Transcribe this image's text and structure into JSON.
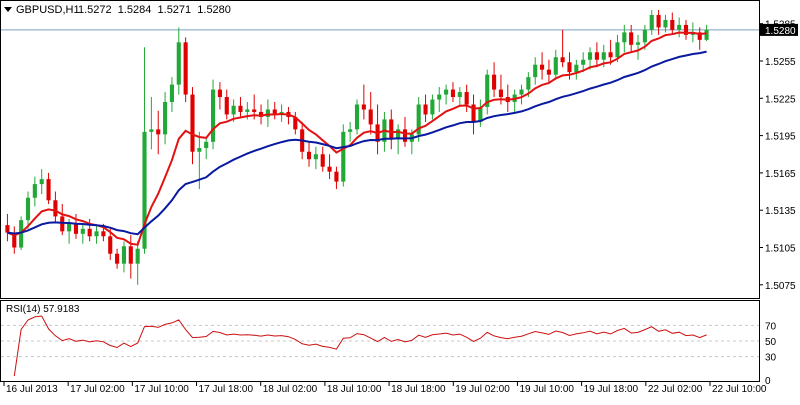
{
  "header": {
    "symbol": "GBPUSD,H1",
    "ohlc": "1.5272  1.5284  1.5271  1.5280",
    "dropdown_icon": "triangle-down-icon"
  },
  "indicator": {
    "label": "RSI(14) 57.9183",
    "levels": [
      "70",
      "50",
      "30",
      "0"
    ]
  },
  "colors": {
    "background": "#ffffff",
    "frame": "#000000",
    "grid": "#c8c8c8",
    "bull": "#22a836",
    "bear": "#e00000",
    "sma_fast": "#e31212",
    "sma_slow": "#0a1aa0",
    "rsi": "#cc1010",
    "price_tag_bg": "#000000",
    "price_tag_fg": "#ffffff",
    "current_price_line": "#7aa0c0"
  },
  "chart_data": {
    "type": "candlestick",
    "symbol": "GBPUSD",
    "timeframe": "H1",
    "current_price": 1.528,
    "current_price_label": "1.5280",
    "price_axis_ticks": [
      "1.5285",
      "1.5255",
      "1.5225",
      "1.5195",
      "1.5165",
      "1.5135",
      "1.5105",
      "1.5075"
    ],
    "price_range": [
      1.5066,
      1.5296
    ],
    "x_ticks": [
      "16 Jul 2013",
      "17 Jul 02:00",
      "17 Jul 10:00",
      "17 Jul 18:00",
      "18 Jul 02:00",
      "18 Jul 10:00",
      "18 Jul 18:00",
      "19 Jul 02:00",
      "19 Jul 10:00",
      "19 Jul 18:00",
      "22 Jul 02:00",
      "22 Jul 10:00"
    ],
    "candles": [
      [
        1.5123,
        1.5132,
        1.511,
        1.5117
      ],
      [
        1.5117,
        1.5122,
        1.51,
        1.5105
      ],
      [
        1.5105,
        1.513,
        1.5103,
        1.5127
      ],
      [
        1.5127,
        1.515,
        1.512,
        1.5145
      ],
      [
        1.5145,
        1.5162,
        1.5138,
        1.5156
      ],
      [
        1.5156,
        1.5168,
        1.5148,
        1.516
      ],
      [
        1.516,
        1.5165,
        1.514,
        1.5143
      ],
      [
        1.5143,
        1.515,
        1.5125,
        1.513
      ],
      [
        1.513,
        1.514,
        1.5115,
        1.5118
      ],
      [
        1.5118,
        1.5128,
        1.5108,
        1.5124
      ],
      [
        1.5124,
        1.5132,
        1.5112,
        1.5116
      ],
      [
        1.5116,
        1.5124,
        1.5108,
        1.512
      ],
      [
        1.512,
        1.5128,
        1.511,
        1.5114
      ],
      [
        1.5114,
        1.5122,
        1.5108,
        1.5118
      ],
      [
        1.5118,
        1.5124,
        1.511,
        1.5114
      ],
      [
        1.5114,
        1.512,
        1.5095,
        1.51
      ],
      [
        1.51,
        1.5104,
        1.5088,
        1.5092
      ],
      [
        1.5092,
        1.511,
        1.5085,
        1.5106
      ],
      [
        1.5106,
        1.5115,
        1.508,
        1.5092
      ],
      [
        1.5092,
        1.511,
        1.5075,
        1.5104
      ],
      [
        1.5104,
        1.5266,
        1.51,
        1.5198
      ],
      [
        1.5198,
        1.5226,
        1.5184,
        1.52
      ],
      [
        1.52,
        1.5215,
        1.518,
        1.5196
      ],
      [
        1.5196,
        1.523,
        1.5188,
        1.5222
      ],
      [
        1.5222,
        1.5242,
        1.5214,
        1.5236
      ],
      [
        1.5236,
        1.5282,
        1.5228,
        1.527
      ],
      [
        1.527,
        1.5274,
        1.5222,
        1.5228
      ],
      [
        1.5228,
        1.5234,
        1.5172,
        1.5182
      ],
      [
        1.5182,
        1.5198,
        1.5152,
        1.5185
      ],
      [
        1.5185,
        1.5194,
        1.5176,
        1.519
      ],
      [
        1.519,
        1.524,
        1.5184,
        1.5232
      ],
      [
        1.5232,
        1.5238,
        1.5216,
        1.5226
      ],
      [
        1.5226,
        1.5232,
        1.5208,
        1.5212
      ],
      [
        1.5212,
        1.5224,
        1.5206,
        1.5219
      ],
      [
        1.5219,
        1.5226,
        1.521,
        1.5214
      ],
      [
        1.5214,
        1.5222,
        1.5208,
        1.5216
      ],
      [
        1.5216,
        1.5228,
        1.5208,
        1.5214
      ],
      [
        1.5214,
        1.522,
        1.5204,
        1.521
      ],
      [
        1.521,
        1.5224,
        1.5202,
        1.5216
      ],
      [
        1.5216,
        1.5222,
        1.5208,
        1.5212
      ],
      [
        1.5212,
        1.522,
        1.5206,
        1.5214
      ],
      [
        1.5214,
        1.5218,
        1.5204,
        1.521
      ],
      [
        1.521,
        1.5214,
        1.5196,
        1.52
      ],
      [
        1.52,
        1.5206,
        1.5176,
        1.5182
      ],
      [
        1.5182,
        1.519,
        1.517,
        1.5176
      ],
      [
        1.5176,
        1.5186,
        1.5168,
        1.518
      ],
      [
        1.518,
        1.5186,
        1.5166,
        1.517
      ],
      [
        1.517,
        1.518,
        1.516,
        1.5166
      ],
      [
        1.5166,
        1.517,
        1.5152,
        1.5158
      ],
      [
        1.5158,
        1.5204,
        1.5154,
        1.5198
      ],
      [
        1.5198,
        1.5206,
        1.519,
        1.52
      ],
      [
        1.52,
        1.5224,
        1.5196,
        1.522
      ],
      [
        1.522,
        1.5236,
        1.5208,
        1.5216
      ],
      [
        1.5216,
        1.523,
        1.5196,
        1.5204
      ],
      [
        1.5204,
        1.522,
        1.518,
        1.519
      ],
      [
        1.519,
        1.5214,
        1.5182,
        1.5208
      ],
      [
        1.5208,
        1.5216,
        1.5184,
        1.5192
      ],
      [
        1.5192,
        1.5204,
        1.518,
        1.52
      ],
      [
        1.52,
        1.521,
        1.5186,
        1.519
      ],
      [
        1.519,
        1.52,
        1.518,
        1.5196
      ],
      [
        1.5196,
        1.5226,
        1.519,
        1.522
      ],
      [
        1.522,
        1.5228,
        1.5206,
        1.5212
      ],
      [
        1.5212,
        1.5228,
        1.5208,
        1.5224
      ],
      [
        1.5224,
        1.5234,
        1.5214,
        1.5228
      ],
      [
        1.5228,
        1.5236,
        1.522,
        1.5232
      ],
      [
        1.5232,
        1.5238,
        1.5222,
        1.5226
      ],
      [
        1.5226,
        1.5234,
        1.5218,
        1.523
      ],
      [
        1.523,
        1.5236,
        1.5214,
        1.522
      ],
      [
        1.522,
        1.5228,
        1.5196,
        1.5206
      ],
      [
        1.5206,
        1.5224,
        1.5202,
        1.5218
      ],
      [
        1.5218,
        1.5248,
        1.5212,
        1.5244
      ],
      [
        1.5244,
        1.5254,
        1.5226,
        1.5232
      ],
      [
        1.5232,
        1.5244,
        1.522,
        1.5226
      ],
      [
        1.5226,
        1.5236,
        1.5214,
        1.5222
      ],
      [
        1.5222,
        1.5232,
        1.5214,
        1.5228
      ],
      [
        1.5228,
        1.5236,
        1.522,
        1.5232
      ],
      [
        1.5232,
        1.5246,
        1.5226,
        1.5242
      ],
      [
        1.5242,
        1.5258,
        1.5236,
        1.5252
      ],
      [
        1.5252,
        1.5262,
        1.524,
        1.5248
      ],
      [
        1.5248,
        1.5256,
        1.5238,
        1.5244
      ],
      [
        1.5244,
        1.5264,
        1.524,
        1.5258
      ],
      [
        1.5258,
        1.528,
        1.525,
        1.5254
      ],
      [
        1.5254,
        1.5262,
        1.524,
        1.5246
      ],
      [
        1.5246,
        1.5256,
        1.524,
        1.5252
      ],
      [
        1.5252,
        1.5262,
        1.5246,
        1.5256
      ],
      [
        1.5256,
        1.5266,
        1.5248,
        1.5262
      ],
      [
        1.5262,
        1.527,
        1.525,
        1.5256
      ],
      [
        1.5256,
        1.5268,
        1.525,
        1.5262
      ],
      [
        1.5262,
        1.5272,
        1.5252,
        1.5258
      ],
      [
        1.5258,
        1.5276,
        1.5254,
        1.527
      ],
      [
        1.527,
        1.5284,
        1.5262,
        1.5278
      ],
      [
        1.5278,
        1.5284,
        1.5262,
        1.5268
      ],
      [
        1.5268,
        1.5276,
        1.5256,
        1.527
      ],
      [
        1.527,
        1.5284,
        1.5264,
        1.528
      ],
      [
        1.528,
        1.5296,
        1.5276,
        1.5292
      ],
      [
        1.5292,
        1.5296,
        1.5276,
        1.5282
      ],
      [
        1.5282,
        1.5292,
        1.5278,
        1.5288
      ],
      [
        1.5288,
        1.5294,
        1.5276,
        1.528
      ],
      [
        1.528,
        1.529,
        1.5274,
        1.5284
      ],
      [
        1.5284,
        1.5288,
        1.5272,
        1.5276
      ],
      [
        1.5276,
        1.5286,
        1.527,
        1.5278
      ],
      [
        1.5278,
        1.5282,
        1.5264,
        1.5272
      ],
      [
        1.5272,
        1.5284,
        1.5271,
        1.528
      ]
    ],
    "indicators": [
      "fast moving average (red)",
      "slow moving average (blue)"
    ],
    "rsi": {
      "period": 14,
      "value": 57.9183,
      "levels": [
        70,
        50,
        30
      ],
      "range": [
        0,
        100
      ]
    }
  }
}
